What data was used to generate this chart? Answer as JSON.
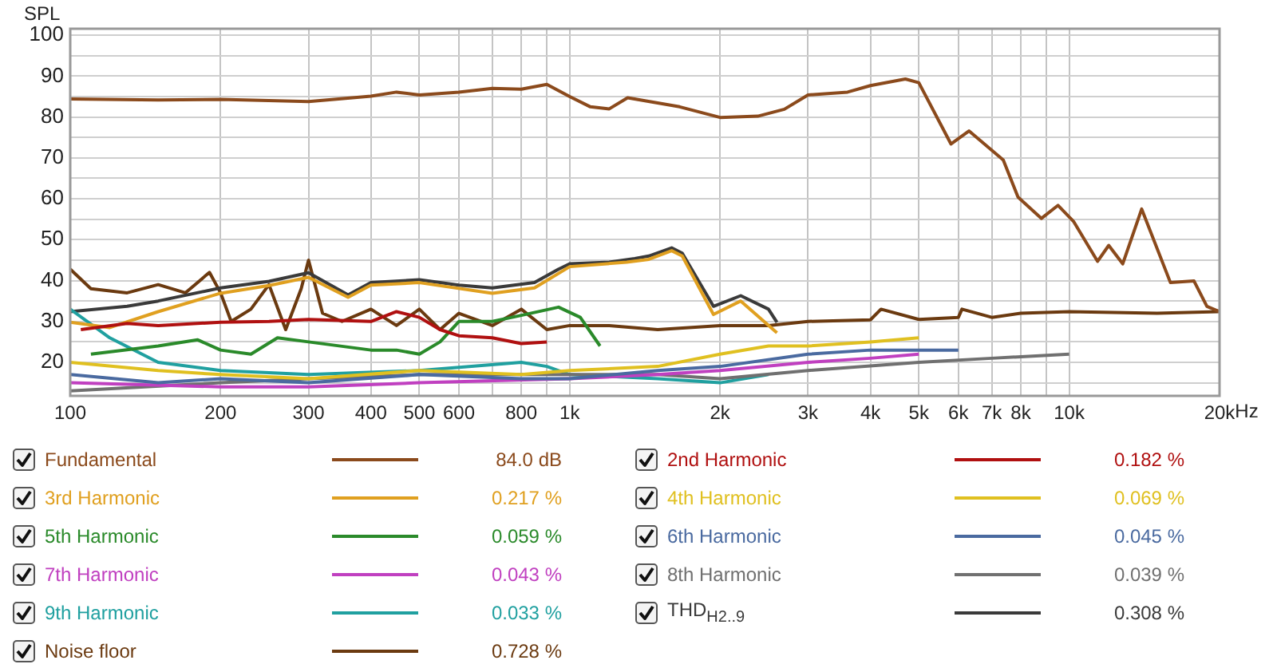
{
  "chart_data": {
    "type": "line",
    "ylabel": "SPL",
    "log": "x",
    "grid": true,
    "legend": "bottom",
    "xlim": [
      100,
      20000
    ],
    "ylim": [
      11.8,
      101.6
    ],
    "xticks": [
      100,
      200,
      300,
      400,
      500,
      600,
      {
        "value": 700,
        "label": null
      },
      800,
      {
        "value": 900,
        "label": null
      },
      {
        "value": 1000,
        "label": "1k"
      },
      {
        "value": 2000,
        "label": "2k"
      },
      {
        "value": 3000,
        "label": "3k"
      },
      {
        "value": 4000,
        "label": "4k"
      },
      {
        "value": 5000,
        "label": "5k"
      },
      {
        "value": 6000,
        "label": "6k"
      },
      {
        "value": 7000,
        "label": "7k"
      },
      {
        "value": 8000,
        "label": "8k"
      },
      {
        "value": 9000,
        "label": null
      },
      {
        "value": 10000,
        "label": "10k"
      },
      {
        "value": 20000,
        "label": "20k"
      }
    ],
    "xlabel": "Hz",
    "yticks": [
      {
        "value": 15,
        "label": null
      },
      20,
      {
        "value": 25,
        "label": null
      },
      30,
      {
        "value": 35,
        "label": null
      },
      40,
      {
        "value": 45,
        "label": null
      },
      50,
      {
        "value": 55,
        "label": null
      },
      60,
      {
        "value": 65,
        "label": null
      },
      70,
      {
        "value": 75,
        "label": null
      },
      80,
      {
        "value": 85,
        "label": null
      },
      90,
      {
        "value": 95,
        "label": null
      },
      100
    ],
    "annotations": [
      "84.0 dB",
      "0.182 %",
      "0.217 %",
      "0.069 %",
      "0.059 %",
      "0.045 %",
      "0.043 %",
      "0.039 %",
      "0.033 %",
      "0.308 %",
      "0.728 %"
    ],
    "series": [
      {
        "name": "Fundamental",
        "color": "#8b4a1c",
        "x": [
          100,
          150,
          200,
          300,
          400,
          450,
          500,
          600,
          700,
          800,
          900,
          1000,
          1100,
          1200,
          1306,
          1660,
          2000,
          2380,
          2690,
          3000,
          3600,
          4000,
          4700,
          5000,
          5800,
          6300,
          7380,
          7900,
          8800,
          9500,
          10200,
          11400,
          12000,
          12800,
          13970,
          15950,
          17780,
          18870,
          20000
        ],
        "values": [
          84.4,
          84.2,
          84.3,
          83.8,
          85.1,
          86.1,
          85.4,
          86.1,
          87,
          86.8,
          88,
          85,
          82.5,
          82,
          84.7,
          82.5,
          79.9,
          80.2,
          81.9,
          85.4,
          86.1,
          87.7,
          89.3,
          88.4,
          73.4,
          76.6,
          69.5,
          60.4,
          55.2,
          58.4,
          54.5,
          44.7,
          48.6,
          44.1,
          57.5,
          39.5,
          39.9,
          33.7,
          32.4
        ]
      },
      {
        "name": "2nd Harmonic",
        "color": "#b01010",
        "x": [
          105,
          130,
          150,
          200,
          250,
          300,
          400,
          450,
          500,
          550,
          600,
          700,
          800,
          900
        ],
        "values": [
          28,
          29.5,
          29,
          29.8,
          30,
          30.5,
          30,
          32.4,
          31,
          28,
          26.5,
          26,
          24.6,
          25
        ]
      },
      {
        "name": "3rd Harmonic",
        "color": "#e0a020",
        "x": [
          100,
          120,
          150,
          200,
          250,
          300,
          360,
          400,
          500,
          700,
          850,
          1000,
          1300,
          1440,
          1600,
          1680,
          1940,
          2200,
          2600
        ],
        "values": [
          29.8,
          28.5,
          32.4,
          36.9,
          38.8,
          40.8,
          35.9,
          38.9,
          39.5,
          36.9,
          38.2,
          43.4,
          44.5,
          45.2,
          47.3,
          46,
          31.7,
          35,
          27.2
        ]
      },
      {
        "name": "4th Harmonic",
        "color": "#e0c020",
        "x": [
          100,
          150,
          200,
          300,
          500,
          800,
          1000,
          1500,
          2000,
          2500,
          3000,
          4000,
          5000
        ],
        "values": [
          20,
          18,
          17,
          16,
          18,
          17,
          18,
          19,
          22,
          24,
          24,
          25,
          26
        ]
      },
      {
        "name": "5th Harmonic",
        "color": "#2a8a2a",
        "x": [
          110,
          150,
          180,
          200,
          230,
          260,
          300,
          400,
          450,
          500,
          550,
          600,
          700,
          800,
          950,
          1050,
          1150
        ],
        "values": [
          22,
          24,
          25.5,
          23,
          22,
          26,
          25,
          23,
          23,
          22,
          25,
          30,
          30,
          31.5,
          33.5,
          31,
          24
        ]
      },
      {
        "name": "6th Harmonic",
        "color": "#4a6aa0",
        "x": [
          100,
          150,
          200,
          300,
          500,
          800,
          1000,
          1500,
          2000,
          3000,
          4000,
          6000
        ],
        "values": [
          17,
          15,
          16,
          15,
          17,
          16,
          16,
          18,
          19,
          22,
          23,
          23
        ]
      },
      {
        "name": "7th Harmonic",
        "color": "#c040c0",
        "x": [
          100,
          200,
          300,
          500,
          1000,
          1500,
          2000,
          3000,
          4000,
          5000
        ],
        "values": [
          15,
          14,
          14,
          15,
          16,
          17,
          18,
          20,
          21,
          22
        ]
      },
      {
        "name": "8th Harmonic",
        "color": "#707070",
        "x": [
          100,
          200,
          300,
          500,
          1000,
          1500,
          2000,
          3000,
          5000,
          7000,
          10000
        ],
        "values": [
          13,
          15,
          16,
          17,
          17,
          17,
          16,
          18,
          20,
          21,
          22
        ]
      },
      {
        "name": "9th Harmonic",
        "color": "#20a0a0",
        "x": [
          100,
          120,
          150,
          200,
          300,
          500,
          800,
          900,
          1000,
          1500,
          2000,
          2500
        ],
        "values": [
          33,
          26,
          20,
          18,
          17,
          18,
          20,
          19,
          17,
          16,
          15,
          17
        ]
      },
      {
        "name": "THD$_{H2..9}$",
        "color": "#3a3a3a",
        "x": [
          100,
          130,
          150,
          200,
          250,
          300,
          360,
          400,
          500,
          600,
          700,
          850,
          950,
          1000,
          1200,
          1350,
          1440,
          1600,
          1680,
          1940,
          2200,
          2500,
          2600
        ],
        "values": [
          32.4,
          33.7,
          35,
          38.2,
          39.8,
          41.9,
          36.5,
          39.5,
          40.2,
          38.9,
          38.2,
          39.5,
          42.8,
          44.1,
          44.5,
          45.4,
          46,
          48,
          46.7,
          33.7,
          36.3,
          33,
          29.8
        ]
      },
      {
        "name": "Noise floor",
        "color": "#6b3a10",
        "x": [
          100,
          110,
          130,
          150,
          170,
          190,
          200,
          210,
          230,
          250,
          270,
          290,
          300,
          320,
          350,
          400,
          450,
          500,
          550,
          600,
          700,
          800,
          900,
          1000,
          1200,
          1500,
          2000,
          2500,
          3000,
          4000,
          4200,
          5000,
          6000,
          6100,
          7000,
          8000,
          10000,
          15000,
          20000
        ],
        "values": [
          42.8,
          38,
          37,
          39,
          37,
          42,
          37,
          30,
          33,
          39,
          28,
          38,
          45,
          32,
          30,
          33,
          29,
          33,
          28,
          32,
          29,
          33,
          28,
          29,
          29,
          28,
          29,
          29,
          30,
          30.4,
          33,
          30.5,
          31,
          33,
          31,
          32,
          32.4,
          32,
          32.4
        ]
      }
    ]
  }
}
